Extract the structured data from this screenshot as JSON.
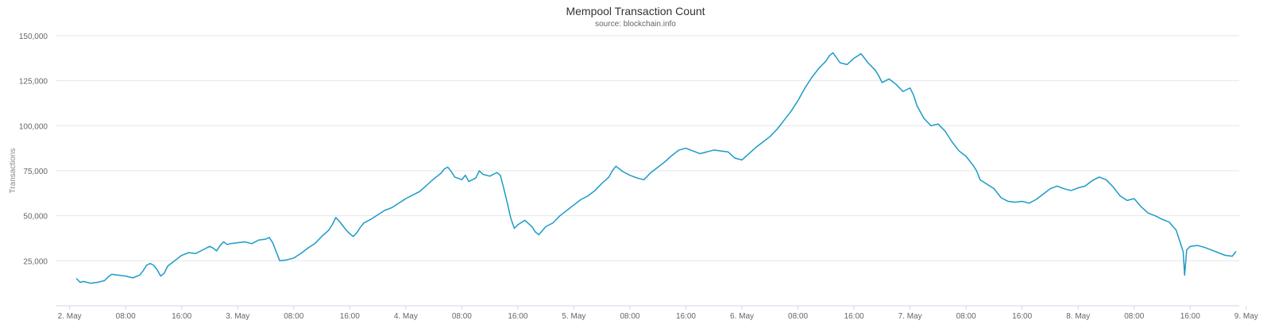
{
  "chart_data": {
    "type": "line",
    "title": "Mempool Transaction Count",
    "subtitle": "source: blockchain.info",
    "ylabel": "Transactions",
    "xlabel": "",
    "y_ticks": [
      "25,000",
      "50,000",
      "75,000",
      "100,000",
      "125,000",
      "150,000"
    ],
    "y_tick_values": [
      25000,
      50000,
      75000,
      100000,
      125000,
      150000
    ],
    "ylim": [
      0,
      150000
    ],
    "x_unit": "hours since 2. May 00:00",
    "xlim": [
      -2,
      167
    ],
    "x_ticks": [
      "2. May",
      "08:00",
      "16:00",
      "3. May",
      "08:00",
      "16:00",
      "4. May",
      "08:00",
      "16:00",
      "5. May",
      "08:00",
      "16:00",
      "6. May",
      "08:00",
      "16:00",
      "7. May",
      "08:00",
      "16:00",
      "8. May",
      "08:00",
      "16:00",
      "9. May"
    ],
    "x_tick_hours": [
      0,
      8,
      16,
      24,
      32,
      40,
      48,
      56,
      64,
      72,
      80,
      88,
      96,
      104,
      112,
      120,
      128,
      136,
      144,
      152,
      160,
      168
    ],
    "grid": true,
    "legend": "none",
    "series": [
      {
        "color": "#1a9bc8",
        "points": [
          [
            1,
            15000
          ],
          [
            1.5,
            13000
          ],
          [
            2,
            13500
          ],
          [
            3,
            12500
          ],
          [
            4,
            13000
          ],
          [
            5,
            14000
          ],
          [
            5.5,
            16000
          ],
          [
            6,
            17500
          ],
          [
            7,
            17000
          ],
          [
            8,
            16500
          ],
          [
            9,
            15500
          ],
          [
            10,
            17000
          ],
          [
            10.5,
            19500
          ],
          [
            11,
            22500
          ],
          [
            11.5,
            23500
          ],
          [
            12,
            22500
          ],
          [
            12.5,
            20000
          ],
          [
            13,
            16500
          ],
          [
            13.5,
            18000
          ],
          [
            14,
            22000
          ],
          [
            14.5,
            23500
          ],
          [
            15,
            25000
          ],
          [
            16,
            28000
          ],
          [
            17,
            29500
          ],
          [
            18,
            29000
          ],
          [
            19,
            31000
          ],
          [
            20,
            33000
          ],
          [
            20.5,
            32000
          ],
          [
            21,
            30500
          ],
          [
            21.5,
            33500
          ],
          [
            22,
            35500
          ],
          [
            22.5,
            34000
          ],
          [
            23,
            34500
          ],
          [
            24,
            35000
          ],
          [
            25,
            35500
          ],
          [
            26,
            34500
          ],
          [
            27,
            36500
          ],
          [
            28,
            37000
          ],
          [
            28.5,
            38000
          ],
          [
            29,
            35000
          ],
          [
            29.5,
            30000
          ],
          [
            30,
            25000
          ],
          [
            31,
            25500
          ],
          [
            32,
            26500
          ],
          [
            33,
            29000
          ],
          [
            34,
            32000
          ],
          [
            35,
            34500
          ],
          [
            36,
            38500
          ],
          [
            37,
            42000
          ],
          [
            37.5,
            45000
          ],
          [
            38,
            49000
          ],
          [
            38.5,
            47000
          ],
          [
            39,
            44500
          ],
          [
            39.5,
            42000
          ],
          [
            40,
            40000
          ],
          [
            40.5,
            38500
          ],
          [
            41,
            40500
          ],
          [
            41.5,
            43500
          ],
          [
            42,
            46000
          ],
          [
            43,
            48000
          ],
          [
            44,
            50500
          ],
          [
            45,
            53000
          ],
          [
            46,
            54500
          ],
          [
            47,
            57000
          ],
          [
            48,
            59500
          ],
          [
            49,
            61500
          ],
          [
            50,
            63500
          ],
          [
            51,
            67000
          ],
          [
            52,
            70500
          ],
          [
            53,
            73500
          ],
          [
            53.5,
            76000
          ],
          [
            54,
            77000
          ],
          [
            54.5,
            74500
          ],
          [
            55,
            71500
          ],
          [
            56,
            70000
          ],
          [
            56.5,
            72500
          ],
          [
            57,
            69000
          ],
          [
            58,
            71000
          ],
          [
            58.5,
            75000
          ],
          [
            59,
            73000
          ],
          [
            60,
            72000
          ],
          [
            61,
            74000
          ],
          [
            61.5,
            72500
          ],
          [
            62,
            65000
          ],
          [
            62.5,
            57000
          ],
          [
            63,
            48500
          ],
          [
            63.5,
            43000
          ],
          [
            64,
            45000
          ],
          [
            65,
            47500
          ],
          [
            66,
            44000
          ],
          [
            66.5,
            41000
          ],
          [
            67,
            39500
          ],
          [
            68,
            44000
          ],
          [
            69,
            46000
          ],
          [
            70,
            50000
          ],
          [
            71,
            53000
          ],
          [
            72,
            56000
          ],
          [
            73,
            59000
          ],
          [
            74,
            61000
          ],
          [
            75,
            64000
          ],
          [
            76,
            68000
          ],
          [
            77,
            71500
          ],
          [
            77.5,
            75000
          ],
          [
            78,
            77500
          ],
          [
            79,
            74500
          ],
          [
            80,
            72500
          ],
          [
            81,
            71000
          ],
          [
            82,
            70000
          ],
          [
            83,
            74000
          ],
          [
            84,
            77000
          ],
          [
            85,
            80000
          ],
          [
            86,
            83500
          ],
          [
            87,
            86500
          ],
          [
            88,
            87500
          ],
          [
            89,
            86000
          ],
          [
            90,
            84500
          ],
          [
            91,
            85500
          ],
          [
            92,
            86500
          ],
          [
            93,
            86000
          ],
          [
            94,
            85500
          ],
          [
            95,
            82000
          ],
          [
            96,
            81000
          ],
          [
            97,
            84500
          ],
          [
            98,
            88000
          ],
          [
            99,
            91000
          ],
          [
            100,
            94000
          ],
          [
            101,
            98000
          ],
          [
            102,
            103000
          ],
          [
            103,
            108000
          ],
          [
            104,
            114000
          ],
          [
            105,
            121000
          ],
          [
            106,
            127000
          ],
          [
            107,
            132000
          ],
          [
            108,
            136000
          ],
          [
            108.5,
            139000
          ],
          [
            109,
            140500
          ],
          [
            110,
            135000
          ],
          [
            111,
            134000
          ],
          [
            112,
            137500
          ],
          [
            113,
            140000
          ],
          [
            114,
            135000
          ],
          [
            115,
            131000
          ],
          [
            115.5,
            128000
          ],
          [
            116,
            124000
          ],
          [
            117,
            126000
          ],
          [
            118,
            123000
          ],
          [
            119,
            119000
          ],
          [
            120,
            121000
          ],
          [
            120.5,
            117000
          ],
          [
            121,
            111000
          ],
          [
            122,
            104000
          ],
          [
            123,
            100000
          ],
          [
            124,
            101000
          ],
          [
            125,
            97000
          ],
          [
            126,
            91000
          ],
          [
            127,
            86000
          ],
          [
            128,
            83000
          ],
          [
            129,
            78000
          ],
          [
            129.5,
            75000
          ],
          [
            130,
            70000
          ],
          [
            131,
            67500
          ],
          [
            132,
            65000
          ],
          [
            133,
            60000
          ],
          [
            134,
            58000
          ],
          [
            135,
            57500
          ],
          [
            136,
            58000
          ],
          [
            137,
            57000
          ],
          [
            138,
            59000
          ],
          [
            139,
            62000
          ],
          [
            140,
            65000
          ],
          [
            141,
            66500
          ],
          [
            142,
            65000
          ],
          [
            143,
            64000
          ],
          [
            144,
            65500
          ],
          [
            145,
            66500
          ],
          [
            146,
            69500
          ],
          [
            147,
            71500
          ],
          [
            148,
            70000
          ],
          [
            149,
            66000
          ],
          [
            150,
            61000
          ],
          [
            151,
            58500
          ],
          [
            152,
            59500
          ],
          [
            153,
            55000
          ],
          [
            154,
            51500
          ],
          [
            155,
            50000
          ],
          [
            156,
            48000
          ],
          [
            157,
            46500
          ],
          [
            158,
            42000
          ],
          [
            158.5,
            36000
          ],
          [
            159,
            30000
          ],
          [
            159.2,
            17000
          ],
          [
            159.5,
            31000
          ],
          [
            160,
            33000
          ],
          [
            161,
            33500
          ],
          [
            162,
            32500
          ],
          [
            163,
            31000
          ],
          [
            164,
            29500
          ],
          [
            165,
            28000
          ],
          [
            166,
            27500
          ],
          [
            166.5,
            30000
          ]
        ]
      }
    ]
  }
}
